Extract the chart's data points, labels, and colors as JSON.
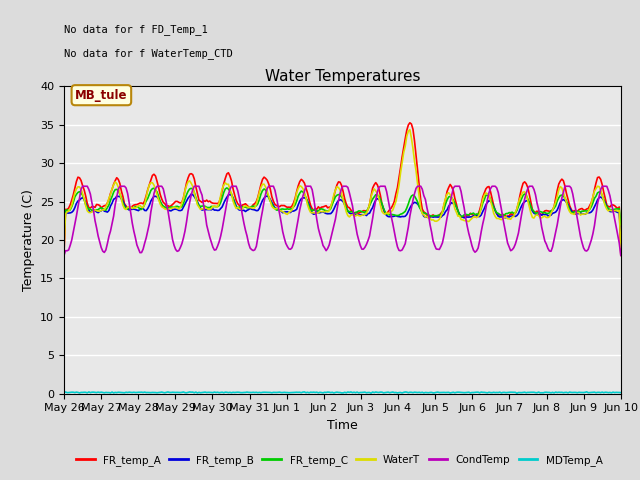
{
  "title": "Water Temperatures",
  "xlabel": "Time",
  "ylabel": "Temperature (C)",
  "ylim": [
    0,
    40
  ],
  "yticks": [
    0,
    5,
    10,
    15,
    20,
    25,
    30,
    35,
    40
  ],
  "bg_color": "#dcdcdc",
  "plot_bg_color": "#e8e8e8",
  "no_data_text": [
    "No data for f FD_Temp_1",
    "No data for f WaterTemp_CTD"
  ],
  "mb_tule_label": "MB_tule",
  "series": {
    "FR_temp_A": {
      "color": "#ff0000",
      "linewidth": 1.2
    },
    "FR_temp_B": {
      "color": "#0000dd",
      "linewidth": 1.2
    },
    "FR_temp_C": {
      "color": "#00cc00",
      "linewidth": 1.2
    },
    "WaterT": {
      "color": "#dddd00",
      "linewidth": 1.2
    },
    "CondTemp": {
      "color": "#bb00bb",
      "linewidth": 1.2
    },
    "MDTemp_A": {
      "color": "#00cccc",
      "linewidth": 1.2
    }
  },
  "x_tick_labels": [
    "May 26",
    "May 27",
    "May 28",
    "May 29",
    "May 30",
    "May 31",
    "Jun 1",
    "Jun 2",
    "Jun 3",
    "Jun 4",
    "Jun 5",
    "Jun 6",
    "Jun 7",
    "Jun 8",
    "Jun 9",
    "Jun 10"
  ],
  "legend_colors": [
    "#ff0000",
    "#0000dd",
    "#00cc00",
    "#dddd00",
    "#bb00bb",
    "#00cccc"
  ],
  "legend_labels": [
    "FR_temp_A",
    "FR_temp_B",
    "FR_temp_C",
    "WaterT",
    "CondTemp",
    "MDTemp_A"
  ]
}
